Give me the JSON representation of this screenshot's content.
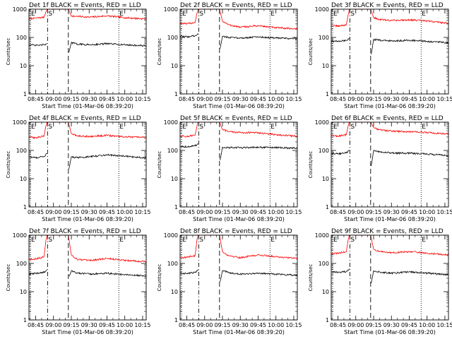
{
  "chart_data": [
    {
      "type": "line",
      "title": "Det 1f BLACK = Events, RED = LLD",
      "xlabel": "Start Time (01-Mar-06 08:39:20)",
      "ylabel": "Counts/sec",
      "y_scale": "log",
      "ylim": [
        1,
        1000
      ],
      "xlim": [
        "08:39:20",
        "10:18:00"
      ],
      "x_ticks": [
        "08:45",
        "09:00",
        "09:15",
        "09:30",
        "09:45",
        "10:00",
        "10:15"
      ],
      "y_ticks": [
        "1",
        "10",
        "100",
        "1000"
      ],
      "markers": [
        {
          "time": "08:40:30",
          "label": "E",
          "style": "dotted"
        },
        {
          "time": "08:55:00",
          "label": "S",
          "style": "dash-dot"
        },
        {
          "time": "09:12:30",
          "label": "",
          "style": "dashed"
        },
        {
          "time": "09:55:00",
          "label": "E",
          "style": "dotted"
        }
      ],
      "series": [
        {
          "color": "#ff0000",
          "x": [
            "08:39:20",
            "08:45",
            "08:52",
            "08:53:30",
            "08:54:30",
            "09:12:30",
            "09:15",
            "09:20",
            "09:30",
            "09:45",
            "10:00",
            "10:18"
          ],
          "y": [
            460,
            480,
            520,
            800,
            1000,
            1000,
            560,
            560,
            520,
            580,
            500,
            450
          ]
        },
        {
          "color": "#000000",
          "x": [
            "08:39:20",
            "08:45",
            "08:52",
            "08:54:30",
            "09:12:30",
            "09:13",
            "09:15",
            "09:20",
            "09:30",
            "09:45",
            "10:00",
            "10:18"
          ],
          "y": [
            55,
            52,
            55,
            60,
            null,
            30,
            65,
            58,
            55,
            60,
            55,
            50
          ]
        }
      ]
    },
    {
      "type": "line",
      "title": "Det 2f BLACK = Events, RED = LLD",
      "xlabel": "Start Time (01-Mar-06 08:39:20)",
      "ylabel": "Counts/sec",
      "y_scale": "log",
      "ylim": [
        1,
        1000
      ],
      "xlim": [
        "08:39:20",
        "10:18:00"
      ],
      "x_ticks": [
        "08:45",
        "09:00",
        "09:15",
        "09:30",
        "09:45",
        "10:00",
        "10:15"
      ],
      "y_ticks": [
        "1",
        "10",
        "100",
        "1000"
      ],
      "markers": [
        {
          "time": "08:40:30",
          "label": "E",
          "style": "dotted"
        },
        {
          "time": "08:55:00",
          "label": "S",
          "style": "dash-dot"
        },
        {
          "time": "09:12:30",
          "label": "",
          "style": "dashed"
        },
        {
          "time": "09:55:00",
          "label": "E",
          "style": "dotted"
        }
      ],
      "series": [
        {
          "color": "#ff0000",
          "x": [
            "08:39:20",
            "08:45",
            "08:52",
            "08:53:30",
            "08:54:30",
            "09:12:30",
            "09:15",
            "09:20",
            "09:30",
            "09:45",
            "10:00",
            "10:18"
          ],
          "y": [
            320,
            300,
            340,
            700,
            1000,
            1000,
            380,
            280,
            230,
            260,
            220,
            200
          ]
        },
        {
          "color": "#000000",
          "x": [
            "08:39:20",
            "08:45",
            "08:52",
            "08:54:30",
            "09:12:30",
            "09:13",
            "09:15",
            "09:20",
            "09:30",
            "09:45",
            "10:00",
            "10:18"
          ],
          "y": [
            110,
            105,
            115,
            140,
            null,
            40,
            110,
            100,
            95,
            105,
            95,
            90
          ]
        }
      ]
    },
    {
      "type": "line",
      "title": "Det 3f BLACK = Events, RED = LLD",
      "xlabel": "Start Time (01-Mar-06 08:39:20)",
      "ylabel": "Counts/sec",
      "y_scale": "log",
      "ylim": [
        1,
        1000
      ],
      "xlim": [
        "08:39:20",
        "10:18:00"
      ],
      "x_ticks": [
        "08:45",
        "09:00",
        "09:15",
        "09:30",
        "09:45",
        "10:00",
        "10:15"
      ],
      "y_ticks": [
        "1",
        "10",
        "100",
        "1000"
      ],
      "markers": [
        {
          "time": "08:40:30",
          "label": "E",
          "style": "dotted"
        },
        {
          "time": "08:55:00",
          "label": "S",
          "style": "dash-dot"
        },
        {
          "time": "09:12:30",
          "label": "",
          "style": "dashed"
        },
        {
          "time": "09:55:00",
          "label": "E",
          "style": "dotted"
        }
      ],
      "series": [
        {
          "color": "#ff0000",
          "x": [
            "08:39:20",
            "08:45",
            "08:52",
            "08:53:30",
            "08:54:30",
            "09:12:30",
            "09:15",
            "09:20",
            "09:30",
            "09:45",
            "10:00",
            "10:18"
          ],
          "y": [
            260,
            250,
            280,
            600,
            1000,
            1000,
            500,
            430,
            400,
            420,
            380,
            320
          ]
        },
        {
          "color": "#000000",
          "x": [
            "08:39:20",
            "08:45",
            "08:52",
            "08:54:30",
            "09:12:30",
            "09:13",
            "09:15",
            "09:20",
            "09:30",
            "09:45",
            "10:00",
            "10:18"
          ],
          "y": [
            75,
            72,
            78,
            95,
            null,
            25,
            85,
            80,
            75,
            80,
            72,
            65
          ]
        }
      ]
    },
    {
      "type": "line",
      "title": "Det 4f BLACK = Events, RED = LLD",
      "xlabel": "Start Time (01-Mar-06 08:39:20)",
      "ylabel": "Counts/sec",
      "y_scale": "log",
      "ylim": [
        1,
        1000
      ],
      "xlim": [
        "08:39:20",
        "10:18:00"
      ],
      "x_ticks": [
        "08:45",
        "09:00",
        "09:15",
        "09:30",
        "09:45",
        "10:00",
        "10:15"
      ],
      "y_ticks": [
        "1",
        "10",
        "100",
        "1000"
      ],
      "markers": [
        {
          "time": "08:40:30",
          "label": "E",
          "style": "dotted"
        },
        {
          "time": "08:55:00",
          "label": "S",
          "style": "dash-dot"
        },
        {
          "time": "09:12:30",
          "label": "",
          "style": "dashed"
        },
        {
          "time": "09:55:00",
          "label": "E",
          "style": "dotted"
        }
      ],
      "series": [
        {
          "color": "#ff0000",
          "x": [
            "08:39:20",
            "08:45",
            "08:52",
            "08:53:30",
            "08:54:30",
            "09:12:30",
            "09:15",
            "09:20",
            "09:30",
            "09:45",
            "10:00",
            "10:18"
          ],
          "y": [
            300,
            280,
            320,
            700,
            1000,
            1000,
            400,
            330,
            310,
            340,
            300,
            290
          ]
        },
        {
          "color": "#000000",
          "x": [
            "08:39:20",
            "08:45",
            "08:52",
            "08:54:30",
            "09:12:30",
            "09:13",
            "09:15",
            "09:20",
            "09:30",
            "09:45",
            "10:00",
            "10:18"
          ],
          "y": [
            60,
            55,
            62,
            75,
            null,
            22,
            60,
            55,
            60,
            70,
            62,
            55
          ]
        }
      ]
    },
    {
      "type": "line",
      "title": "Det 5f BLACK = Events, RED = LLD",
      "xlabel": "Start Time (01-Mar-06 08:39:20)",
      "ylabel": "Counts/sec",
      "y_scale": "log",
      "ylim": [
        1,
        1000
      ],
      "xlim": [
        "08:39:20",
        "10:18:00"
      ],
      "x_ticks": [
        "08:45",
        "09:00",
        "09:15",
        "09:30",
        "09:45",
        "10:00",
        "10:15"
      ],
      "y_ticks": [
        "1",
        "10",
        "100",
        "1000"
      ],
      "markers": [
        {
          "time": "08:40:30",
          "label": "E",
          "style": "dotted"
        },
        {
          "time": "08:55:00",
          "label": "S",
          "style": "dash-dot"
        },
        {
          "time": "09:12:30",
          "label": "",
          "style": "dashed"
        },
        {
          "time": "09:55:00",
          "label": "E",
          "style": "dotted"
        }
      ],
      "series": [
        {
          "color": "#ff0000",
          "x": [
            "08:39:20",
            "08:45",
            "08:52",
            "08:53:30",
            "08:54:30",
            "09:12:30",
            "09:15",
            "09:20",
            "09:30",
            "09:45",
            "10:00",
            "10:18"
          ],
          "y": [
            330,
            310,
            350,
            700,
            1000,
            1000,
            550,
            460,
            430,
            420,
            360,
            320
          ]
        },
        {
          "color": "#000000",
          "x": [
            "08:39:20",
            "08:45",
            "08:52",
            "08:54:30",
            "09:12:30",
            "09:13",
            "09:15",
            "09:20",
            "09:30",
            "09:45",
            "10:00",
            "10:18"
          ],
          "y": [
            140,
            135,
            145,
            170,
            null,
            45,
            130,
            125,
            125,
            130,
            125,
            120
          ]
        }
      ]
    },
    {
      "type": "line",
      "title": "Det 6f BLACK = Events, RED = LLD",
      "xlabel": "Start Time (01-Mar-06 08:39:20)",
      "ylabel": "Counts/sec",
      "y_scale": "log",
      "ylim": [
        1,
        1000
      ],
      "xlim": [
        "08:39:20",
        "10:18:00"
      ],
      "x_ticks": [
        "08:45",
        "09:00",
        "09:15",
        "09:30",
        "09:45",
        "10:00",
        "10:15"
      ],
      "y_ticks": [
        "1",
        "10",
        "100",
        "1000"
      ],
      "markers": [
        {
          "time": "08:40:30",
          "label": "E",
          "style": "dotted"
        },
        {
          "time": "08:55:00",
          "label": "S",
          "style": "dash-dot"
        },
        {
          "time": "09:12:30",
          "label": "",
          "style": "dashed"
        },
        {
          "time": "09:55:00",
          "label": "E",
          "style": "dotted"
        }
      ],
      "series": [
        {
          "color": "#ff0000",
          "x": [
            "08:39:20",
            "08:45",
            "08:52",
            "08:53:30",
            "08:54:30",
            "09:12:30",
            "09:15",
            "09:20",
            "09:30",
            "09:45",
            "10:00",
            "10:18"
          ],
          "y": [
            340,
            320,
            360,
            700,
            1000,
            1000,
            650,
            540,
            480,
            460,
            430,
            380
          ]
        },
        {
          "color": "#000000",
          "x": [
            "08:39:20",
            "08:45",
            "08:52",
            "08:54:30",
            "09:12:30",
            "09:13",
            "09:15",
            "09:20",
            "09:30",
            "09:45",
            "10:00",
            "10:18"
          ],
          "y": [
            80,
            75,
            82,
            100,
            null,
            28,
            100,
            90,
            80,
            80,
            75,
            65
          ]
        }
      ]
    },
    {
      "type": "line",
      "title": "Det 7f BLACK = Events, RED = LLD",
      "xlabel": "Start Time (01-Mar-06 08:39:20)",
      "ylabel": "Counts/sec",
      "y_scale": "log",
      "ylim": [
        1,
        1000
      ],
      "xlim": [
        "08:39:20",
        "10:18:00"
      ],
      "x_ticks": [
        "08:45",
        "09:00",
        "09:15",
        "09:30",
        "09:45",
        "10:00",
        "10:15"
      ],
      "y_ticks": [
        "1",
        "10",
        "100",
        "1000"
      ],
      "markers": [
        {
          "time": "08:40:30",
          "label": "E",
          "style": "dotted"
        },
        {
          "time": "08:55:00",
          "label": "S",
          "style": "dash-dot"
        },
        {
          "time": "09:12:30",
          "label": "",
          "style": "dashed"
        },
        {
          "time": "09:55:00",
          "label": "E",
          "style": "dotted"
        }
      ],
      "series": [
        {
          "color": "#ff0000",
          "x": [
            "08:39:20",
            "08:45",
            "08:52",
            "08:53:30",
            "08:54:30",
            "09:12:30",
            "09:15",
            "09:20",
            "09:30",
            "09:45",
            "10:00",
            "10:18"
          ],
          "y": [
            140,
            145,
            170,
            600,
            1000,
            1000,
            200,
            140,
            125,
            150,
            130,
            115
          ]
        },
        {
          "color": "#000000",
          "x": [
            "08:39:20",
            "08:45",
            "08:52",
            "08:54:30",
            "09:12:30",
            "09:13",
            "09:15",
            "09:20",
            "09:30",
            "09:45",
            "10:00",
            "10:18"
          ],
          "y": [
            42,
            44,
            48,
            60,
            null,
            35,
            55,
            45,
            42,
            45,
            40,
            36
          ]
        }
      ]
    },
    {
      "type": "line",
      "title": "Det 8f BLACK = Events, RED = LLD",
      "xlabel": "Start Time (01-Mar-06 08:39:20)",
      "ylabel": "Counts/sec",
      "y_scale": "log",
      "ylim": [
        1,
        1000
      ],
      "xlim": [
        "08:39:20",
        "10:18:00"
      ],
      "x_ticks": [
        "08:45",
        "09:00",
        "09:15",
        "09:30",
        "09:45",
        "10:00",
        "10:15"
      ],
      "y_ticks": [
        "1",
        "10",
        "100",
        "1000"
      ],
      "markers": [
        {
          "time": "08:40:30",
          "label": "E",
          "style": "dotted"
        },
        {
          "time": "08:55:00",
          "label": "S",
          "style": "dash-dot"
        },
        {
          "time": "09:12:30",
          "label": "",
          "style": "dashed"
        },
        {
          "time": "09:55:00",
          "label": "E",
          "style": "dotted"
        }
      ],
      "series": [
        {
          "color": "#ff0000",
          "x": [
            "08:39:20",
            "08:45",
            "08:52",
            "08:53:30",
            "08:54:30",
            "09:12:30",
            "09:15",
            "09:20",
            "09:30",
            "09:45",
            "10:00",
            "10:18"
          ],
          "y": [
            160,
            165,
            190,
            650,
            1000,
            1000,
            260,
            190,
            160,
            200,
            175,
            150
          ]
        },
        {
          "color": "#000000",
          "x": [
            "08:39:20",
            "08:45",
            "08:52",
            "08:54:30",
            "09:12:30",
            "09:13",
            "09:15",
            "09:20",
            "09:30",
            "09:45",
            "10:00",
            "10:18"
          ],
          "y": [
            45,
            44,
            48,
            60,
            null,
            22,
            55,
            48,
            42,
            45,
            42,
            38
          ]
        }
      ]
    },
    {
      "type": "line",
      "title": "Det 9f BLACK = Events, RED = LLD",
      "xlabel": "Start Time (01-Mar-06 08:39:20)",
      "ylabel": "Counts/sec",
      "y_scale": "log",
      "ylim": [
        1,
        1000
      ],
      "xlim": [
        "08:39:20",
        "10:18:00"
      ],
      "x_ticks": [
        "08:45",
        "09:00",
        "09:15",
        "09:30",
        "09:45",
        "10:00",
        "10:15"
      ],
      "y_ticks": [
        "1",
        "10",
        "100",
        "1000"
      ],
      "markers": [
        {
          "time": "08:40:30",
          "label": "E",
          "style": "dotted"
        },
        {
          "time": "08:55:00",
          "label": "S",
          "style": "dash-dot"
        },
        {
          "time": "09:12:30",
          "label": "",
          "style": "dashed"
        },
        {
          "time": "09:55:00",
          "label": "E",
          "style": "dotted"
        }
      ],
      "series": [
        {
          "color": "#ff0000",
          "x": [
            "08:39:20",
            "08:45",
            "08:52",
            "08:53:30",
            "08:54:30",
            "09:12:30",
            "09:15",
            "09:20",
            "09:30",
            "09:45",
            "10:00",
            "10:18"
          ],
          "y": [
            220,
            230,
            260,
            650,
            1000,
            1000,
            320,
            260,
            240,
            260,
            230,
            200
          ]
        },
        {
          "color": "#000000",
          "x": [
            "08:39:20",
            "08:45",
            "08:52",
            "08:54:30",
            "09:12:30",
            "09:13",
            "09:15",
            "09:20",
            "09:30",
            "09:45",
            "10:00",
            "10:18"
          ],
          "y": [
            50,
            48,
            52,
            65,
            null,
            20,
            55,
            50,
            45,
            50,
            45,
            40
          ]
        }
      ]
    }
  ]
}
